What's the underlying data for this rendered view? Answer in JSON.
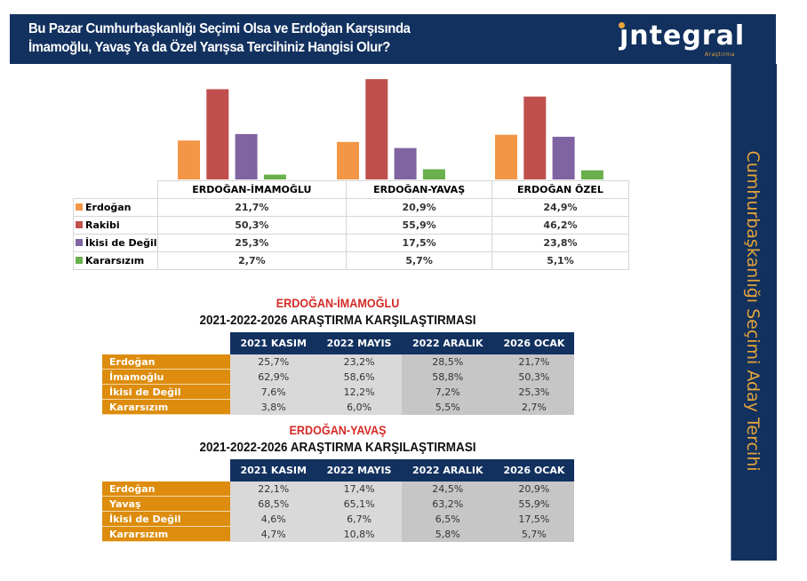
{
  "header": {
    "title_line1": "Bu Pazar Cumhurbaşkanlığı Seçimi Olsa ve Erdoğan Karşısında",
    "title_line2": "İmamoğlu, Yavaş Ya da Özel Yarışsa Tercihiniz Hangisi Olur?",
    "logo_text": "ȷntegral",
    "logo_subtext": "Araştırma"
  },
  "sidebar": {
    "vertical_title": "Cumhurbaşkanlığı Seçimi Aday Tercihi"
  },
  "colors": {
    "navy": "#12315f",
    "orange_label": "#dd8c0d",
    "gold_text": "#e3a43a",
    "red_title": "#d42a26"
  },
  "chart_data": {
    "type": "bar",
    "title": "",
    "xlabel": "",
    "ylabel": "",
    "ylim": [
      0,
      60
    ],
    "grid": false,
    "legend": "table-left",
    "categories": [
      "ERDOĞAN-İMAMOĞLU",
      "ERDOĞAN-YAVAŞ",
      "ERDOĞAN ÖZEL"
    ],
    "series": [
      {
        "name": "Erdoğan",
        "color": "#f39646",
        "values": [
          21.7,
          20.9,
          24.9
        ],
        "labels": [
          "21,7%",
          "20,9%",
          "24,9%"
        ]
      },
      {
        "name": "Rakibi",
        "color": "#c0504d",
        "values": [
          50.3,
          55.9,
          46.2
        ],
        "labels": [
          "50,3%",
          "55,9%",
          "46,2%"
        ]
      },
      {
        "name": "İkisi de Değil",
        "color": "#8064a2",
        "values": [
          25.3,
          17.5,
          23.8
        ],
        "labels": [
          "25,3%",
          "17,5%",
          "23,8%"
        ]
      },
      {
        "name": "Kararsızım",
        "color": "#6ab04c",
        "values": [
          2.7,
          5.7,
          5.1
        ],
        "labels": [
          "2,7%",
          "5,7%",
          "5,1%"
        ]
      }
    ]
  },
  "comparisons": [
    {
      "title_red": "ERDOĞAN-İMAMOĞLU",
      "title_black": "2021-2022-2026 ARAŞTIRMA KARŞILAŞTIRMASI",
      "columns": [
        "2021 KASIM",
        "2022 MAYIS",
        "2022 ARALIK",
        "2026 OCAK"
      ],
      "rows": [
        {
          "label": "Erdoğan",
          "values": [
            "25,7%",
            "23,2%",
            "28,5%",
            "21,7%"
          ]
        },
        {
          "label": "İmamoğlu",
          "values": [
            "62,9%",
            "58,6%",
            "58,8%",
            "50,3%"
          ]
        },
        {
          "label": "İkisi de Değil",
          "values": [
            "7,6%",
            "12,2%",
            "7,2%",
            "25,3%"
          ]
        },
        {
          "label": "Kararsızım",
          "values": [
            "3,8%",
            "6,0%",
            "5,5%",
            "2,7%"
          ]
        }
      ]
    },
    {
      "title_red": "ERDOĞAN-YAVAŞ",
      "title_black": "2021-2022-2026 ARAŞTIRMA KARŞILAŞTIRMASI",
      "columns": [
        "2021 KASIM",
        "2022 MAYIS",
        "2022 ARALIK",
        "2026 OCAK"
      ],
      "rows": [
        {
          "label": "Erdoğan",
          "values": [
            "22,1%",
            "17,4%",
            "24,5%",
            "20,9%"
          ]
        },
        {
          "label": "Yavaş",
          "values": [
            "68,5%",
            "65,1%",
            "63,2%",
            "55,9%"
          ]
        },
        {
          "label": "İkisi de Değil",
          "values": [
            "4,6%",
            "6,7%",
            "6,5%",
            "17,5%"
          ]
        },
        {
          "label": "Kararsızım",
          "values": [
            "4,7%",
            "10,8%",
            "5,8%",
            "5,7%"
          ]
        }
      ]
    }
  ]
}
